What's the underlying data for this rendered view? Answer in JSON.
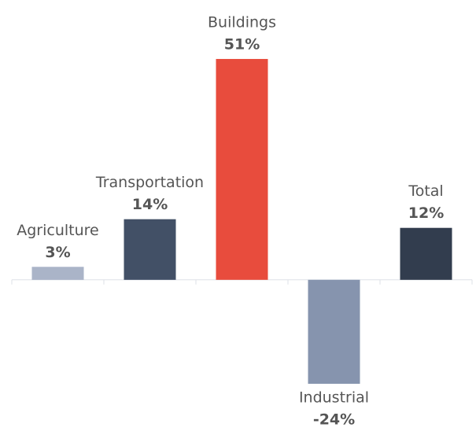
{
  "chart_data": {
    "type": "bar",
    "categories": [
      "Agriculture",
      "Transportation",
      "Buildings",
      "Industrial",
      "Total"
    ],
    "values": [
      3,
      14,
      51,
      -24,
      12
    ],
    "value_labels": [
      "3%",
      "14%",
      "51%",
      "-24%",
      "12%"
    ],
    "colors": [
      "#aab4c8",
      "#425066",
      "#e84c3d",
      "#8694ae",
      "#323d4e"
    ],
    "ylim": [
      -30,
      60
    ]
  }
}
